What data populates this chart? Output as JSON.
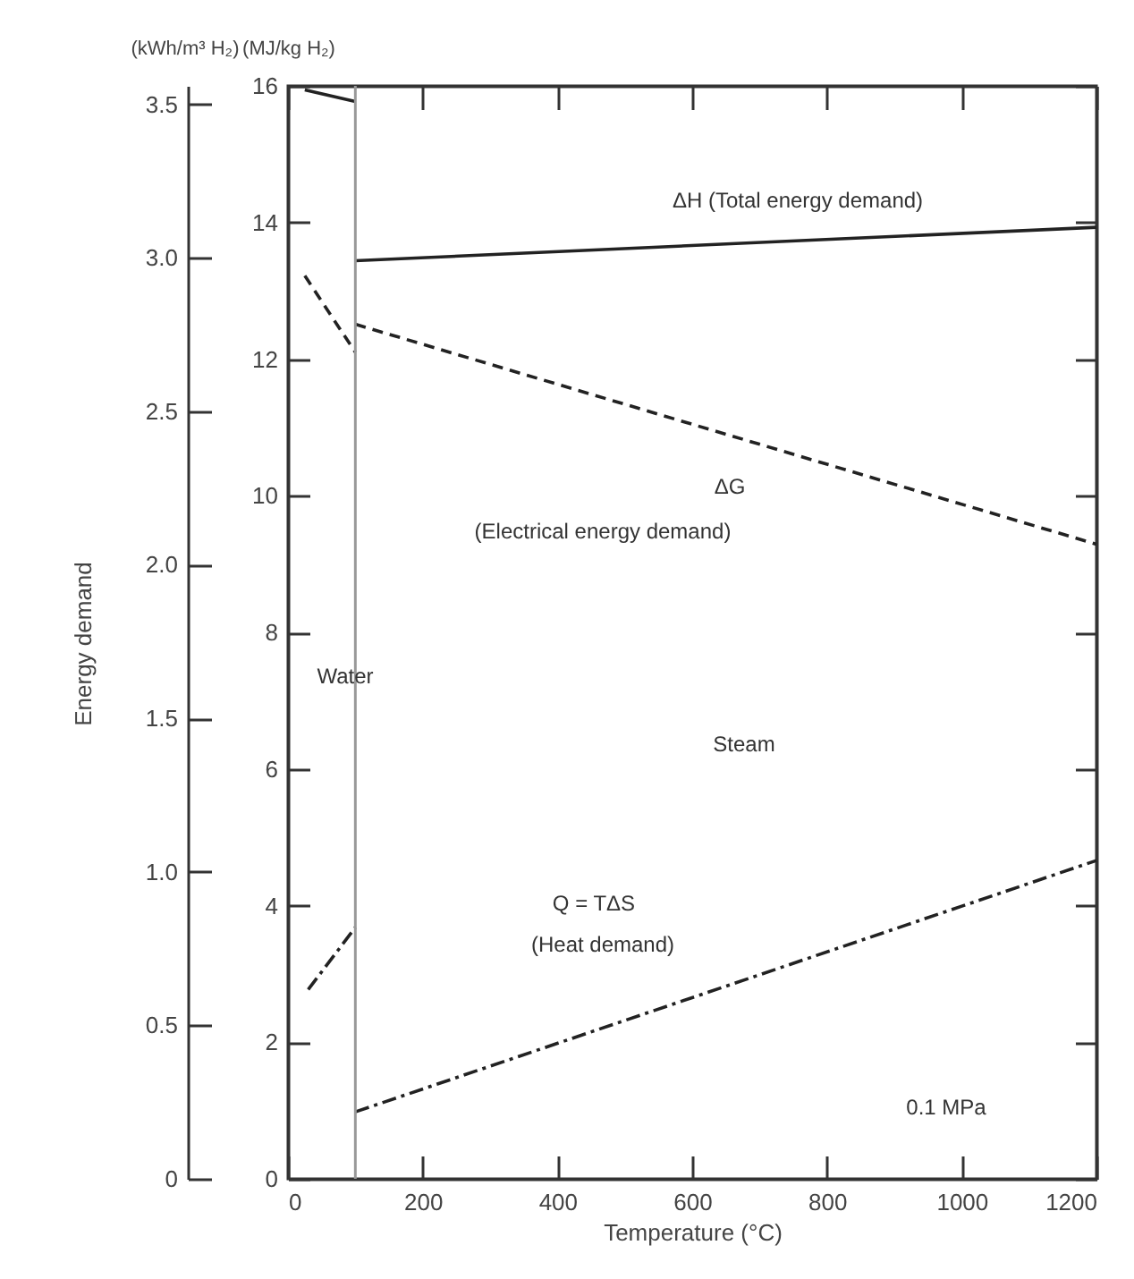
{
  "chart_data": {
    "type": "line",
    "xlabel": "Temperature (°C)",
    "ylabel": "(MJ/kg H₂)",
    "y2label": "(kWh/m³ H₂)",
    "xlim": [
      0,
      1200
    ],
    "xticks": [
      0,
      200,
      400,
      600,
      800,
      1000,
      1200
    ],
    "ylim": [
      0,
      16
    ],
    "yticks": [
      0,
      2,
      4,
      6,
      8,
      10,
      12,
      14,
      16
    ],
    "y2lim": [
      0,
      3.56
    ],
    "y2ticks": [
      0,
      0.5,
      {
        "value": 1,
        "label": "1.0"
      },
      1.5,
      {
        "value": 2,
        "label": "2.0"
      },
      2.5,
      {
        "value": 3,
        "label": "3.0"
      },
      3.5
    ],
    "grid": false,
    "marker": "none",
    "series": [
      {
        "color": "#222222",
        "line_style": "solid",
        "x": [
          25,
          100
        ],
        "values": [
          15.94,
          15.77
        ]
      },
      {
        "color": "#222222",
        "line_style": "solid",
        "x": [
          100,
          1200
        ],
        "values": [
          13.44,
          13.93
        ]
      },
      {
        "color": "#222222",
        "line_style": "dashed",
        "x": [
          25,
          100
        ],
        "values": [
          13.22,
          12.1
        ]
      },
      {
        "color": "#222222",
        "line_style": "dashed",
        "x": [
          100,
          1200
        ],
        "values": [
          12.51,
          9.29
        ]
      },
      {
        "color": "#222222",
        "line_style": "dashdot",
        "x": [
          30,
          100
        ],
        "values": [
          2.77,
          3.68
        ]
      },
      {
        "color": "#222222",
        "line_style": "dashdot",
        "x": [
          100,
          1200
        ],
        "values": [
          0.98,
          4.66
        ]
      }
    ],
    "ref_lines": [
      {
        "axis": "x",
        "value": 100,
        "color": "#999999"
      }
    ],
    "annotations": [
      "Energy demand",
      "ΔH (Total energy demand)",
      "ΔG",
      "(Electrical energy demand)",
      "Water",
      "Steam",
      "Q = TΔS",
      "(Heat demand)",
      "0.1 MPa"
    ]
  }
}
